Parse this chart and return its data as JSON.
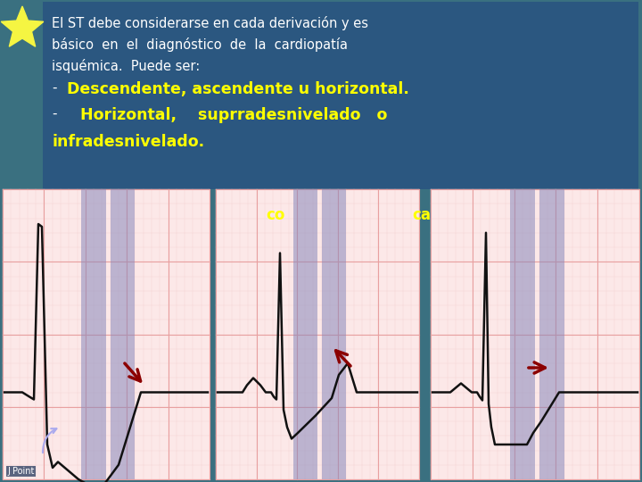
{
  "bg_color": "#3a7080",
  "text_box_color": "#2a5580",
  "star_color": "#f5f542",
  "text_white": "#ffffff",
  "text_yellow": "#ffff00",
  "line1": "El ST debe considerarse en cada derivación y es",
  "line2": "básico  en  el  diagnóstico  de  la  cardiopatía",
  "line3": "isquémica.  Puede ser:",
  "line4": "Descendente, ascendente u horizontal.",
  "line5": "Horizontal,    suprradesnivelado   o",
  "line6": "infradesnivelado.",
  "label_co": "co",
  "label_ca": "ca",
  "ecg_bg": "#fce8e8",
  "ecg_grid_major": "#e8a0a0",
  "ecg_grid_minor": "#f5d0d0",
  "ecg_blue_band": "#8888bb",
  "ecg_line_color": "#111111",
  "arrow_color": "#8b0000",
  "j_point_text": "J Point"
}
